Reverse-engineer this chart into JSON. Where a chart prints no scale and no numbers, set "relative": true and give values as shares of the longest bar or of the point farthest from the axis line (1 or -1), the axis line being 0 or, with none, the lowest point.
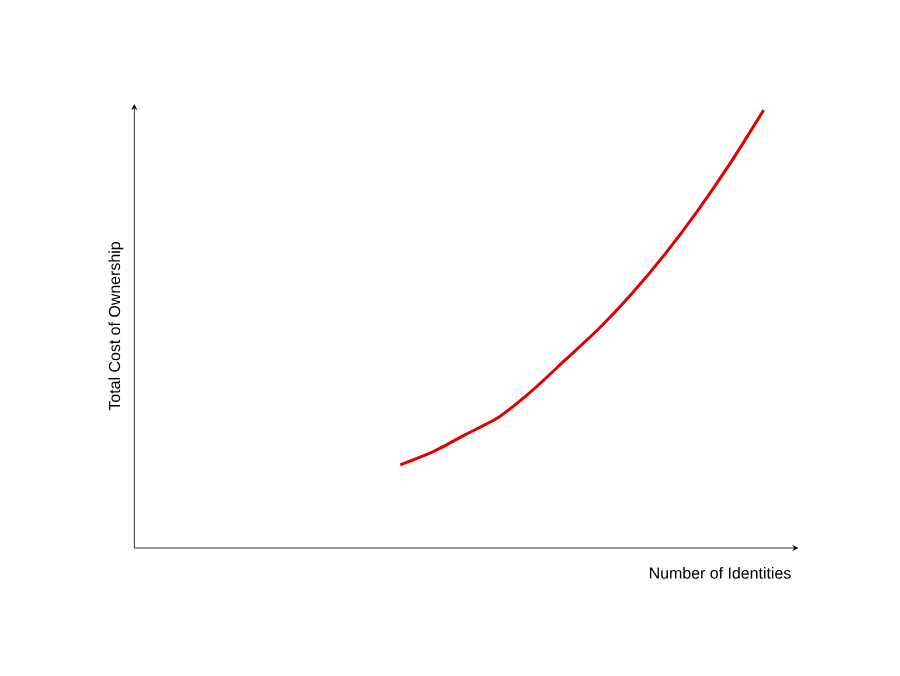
{
  "chart_data": {
    "type": "line",
    "xlabel": "Number of Identities",
    "ylabel": "Total Cost of Ownership",
    "relative": true,
    "categories": [
      null,
      null,
      null,
      null,
      null,
      null,
      null,
      null,
      null,
      null,
      null,
      null,
      null,
      null,
      null,
      null,
      null,
      null,
      null,
      null,
      null
    ],
    "series": [
      {
        "color": "#e00000",
        "values": [
          null,
          null,
          null,
          null,
          null,
          null,
          null,
          null,
          0.19,
          0.22,
          0.26,
          0.3,
          0.36,
          0.43,
          0.5,
          0.58,
          0.67,
          0.77,
          0.88,
          1.0,
          null
        ]
      }
    ]
  }
}
